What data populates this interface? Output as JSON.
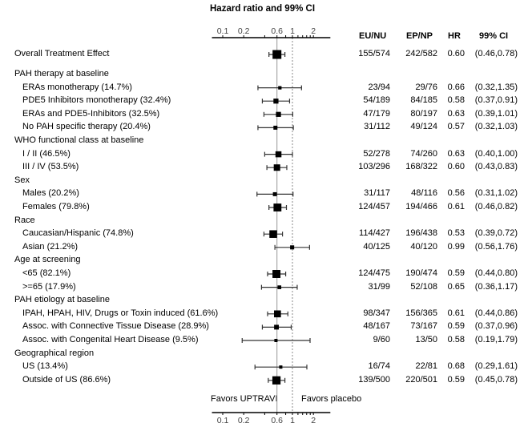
{
  "chart_data": {
    "type": "forest",
    "title": "Hazard ratio and 99% CI",
    "xscale": "log",
    "xlim": [
      0.07,
      3.5
    ],
    "ticks": [
      0.1,
      0.2,
      0.6,
      1,
      2
    ],
    "tick_labels": [
      "0.1",
      "0.2",
      "0.6",
      "1",
      "2"
    ],
    "minor_ticks": [
      0.4,
      0.8,
      1.2,
      1.4,
      1.6,
      1.8
    ],
    "reference_line": 1,
    "overall_line": 0.6,
    "favors_left": "Favors UPTRAVI",
    "favors_right": "Favors placebo",
    "columns": [
      "EU/NU",
      "EP/NP",
      "HR",
      "99% CI"
    ],
    "rows": [
      {
        "label": "Overall Treatment Effect",
        "type": "item",
        "indent": false,
        "eu_nu": "155/574",
        "ep_np": "242/582",
        "hr": 0.6,
        "hr_text": "0.60",
        "lo": 0.46,
        "hi": 0.78,
        "ci_text": "(0.46,0.78)"
      },
      {
        "label": "PAH therapy at baseline",
        "type": "header"
      },
      {
        "label": "ERAs monotherapy (14.7%)",
        "type": "item",
        "indent": true,
        "eu_nu": "23/94",
        "ep_np": "29/76",
        "hr": 0.66,
        "hr_text": "0.66",
        "lo": 0.32,
        "hi": 1.35,
        "ci_text": "(0.32,1.35)"
      },
      {
        "label": "PDE5 Inhibitors monotherapy (32.4%)",
        "type": "item",
        "indent": true,
        "eu_nu": "54/189",
        "ep_np": "84/185",
        "hr": 0.58,
        "hr_text": "0.58",
        "lo": 0.37,
        "hi": 0.91,
        "ci_text": "(0.37,0.91)"
      },
      {
        "label": "ERAs and PDE5-Inhibitors (32.5%)",
        "type": "item",
        "indent": true,
        "eu_nu": "47/179",
        "ep_np": "80/197",
        "hr": 0.63,
        "hr_text": "0.63",
        "lo": 0.39,
        "hi": 1.01,
        "ci_text": "(0.39,1.01)"
      },
      {
        "label": "No PAH specific therapy (20.4%)",
        "type": "item",
        "indent": true,
        "eu_nu": "31/112",
        "ep_np": "49/124",
        "hr": 0.57,
        "hr_text": "0.57",
        "lo": 0.32,
        "hi": 1.03,
        "ci_text": "(0.32,1.03)"
      },
      {
        "label": "WHO functional class at baseline",
        "type": "header"
      },
      {
        "label": "I / II (46.5%)",
        "type": "item",
        "indent": true,
        "eu_nu": "52/278",
        "ep_np": "74/260",
        "hr": 0.63,
        "hr_text": "0.63",
        "lo": 0.4,
        "hi": 1.0,
        "ci_text": "(0.40,1.00)"
      },
      {
        "label": "III / IV (53.5%)",
        "type": "item",
        "indent": true,
        "eu_nu": "103/296",
        "ep_np": "168/322",
        "hr": 0.6,
        "hr_text": "0.60",
        "lo": 0.43,
        "hi": 0.83,
        "ci_text": "(0.43,0.83)"
      },
      {
        "label": "Sex",
        "type": "header"
      },
      {
        "label": "Males (20.2%)",
        "type": "item",
        "indent": true,
        "eu_nu": "31/117",
        "ep_np": "48/116",
        "hr": 0.56,
        "hr_text": "0.56",
        "lo": 0.31,
        "hi": 1.02,
        "ci_text": "(0.31,1.02)"
      },
      {
        "label": "Females (79.8%)",
        "type": "item",
        "indent": true,
        "eu_nu": "124/457",
        "ep_np": "194/466",
        "hr": 0.61,
        "hr_text": "0.61",
        "lo": 0.46,
        "hi": 0.82,
        "ci_text": "(0.46,0.82)"
      },
      {
        "label": "Race",
        "type": "header"
      },
      {
        "label": "Caucasian/Hispanic (74.8%)",
        "type": "item",
        "indent": true,
        "eu_nu": "114/427",
        "ep_np": "196/438",
        "hr": 0.53,
        "hr_text": "0.53",
        "lo": 0.39,
        "hi": 0.72,
        "ci_text": "(0.39,0.72)"
      },
      {
        "label": "Asian (21.2%)",
        "type": "item",
        "indent": true,
        "eu_nu": "40/125",
        "ep_np": "40/120",
        "hr": 0.99,
        "hr_text": "0.99",
        "lo": 0.56,
        "hi": 1.76,
        "ci_text": "(0.56,1.76)"
      },
      {
        "label": "Age at screening",
        "type": "header"
      },
      {
        "label": "<65 (82.1%)",
        "type": "item",
        "indent": true,
        "eu_nu": "124/475",
        "ep_np": "190/474",
        "hr": 0.59,
        "hr_text": "0.59",
        "lo": 0.44,
        "hi": 0.8,
        "ci_text": "(0.44,0.80)"
      },
      {
        "label": ">=65 (17.9%)",
        "type": "item",
        "indent": true,
        "eu_nu": "31/99",
        "ep_np": "52/108",
        "hr": 0.65,
        "hr_text": "0.65",
        "lo": 0.36,
        "hi": 1.17,
        "ci_text": "(0.36,1.17)"
      },
      {
        "label": "PAH etiology at baseline",
        "type": "header"
      },
      {
        "label": "IPAH, HPAH, HIV, Drugs or Toxin induced (61.6%)",
        "type": "item",
        "indent": true,
        "eu_nu": "98/347",
        "ep_np": "156/365",
        "hr": 0.61,
        "hr_text": "0.61",
        "lo": 0.44,
        "hi": 0.86,
        "ci_text": "(0.44,0.86)"
      },
      {
        "label": "Assoc. with Connective Tissue Disease (28.9%)",
        "type": "item",
        "indent": true,
        "eu_nu": "48/167",
        "ep_np": "73/167",
        "hr": 0.59,
        "hr_text": "0.59",
        "lo": 0.37,
        "hi": 0.96,
        "ci_text": "(0.37,0.96)"
      },
      {
        "label": "Assoc. with Congenital Heart Disease (9.5%)",
        "type": "item",
        "indent": true,
        "eu_nu": "9/60",
        "ep_np": "13/50",
        "hr": 0.58,
        "hr_text": "0.58",
        "lo": 0.19,
        "hi": 1.79,
        "ci_text": "(0.19,1.79)"
      },
      {
        "label": "Geographical region",
        "type": "header"
      },
      {
        "label": "US (13.4%)",
        "type": "item",
        "indent": true,
        "eu_nu": "16/74",
        "ep_np": "22/81",
        "hr": 0.68,
        "hr_text": "0.68",
        "lo": 0.29,
        "hi": 1.61,
        "ci_text": "(0.29,1.61)"
      },
      {
        "label": "Outside of US (86.6%)",
        "type": "item",
        "indent": true,
        "eu_nu": "139/500",
        "ep_np": "220/501",
        "hr": 0.59,
        "hr_text": "0.59",
        "lo": 0.45,
        "hi": 0.78,
        "ci_text": "(0.45,0.78)"
      }
    ]
  }
}
